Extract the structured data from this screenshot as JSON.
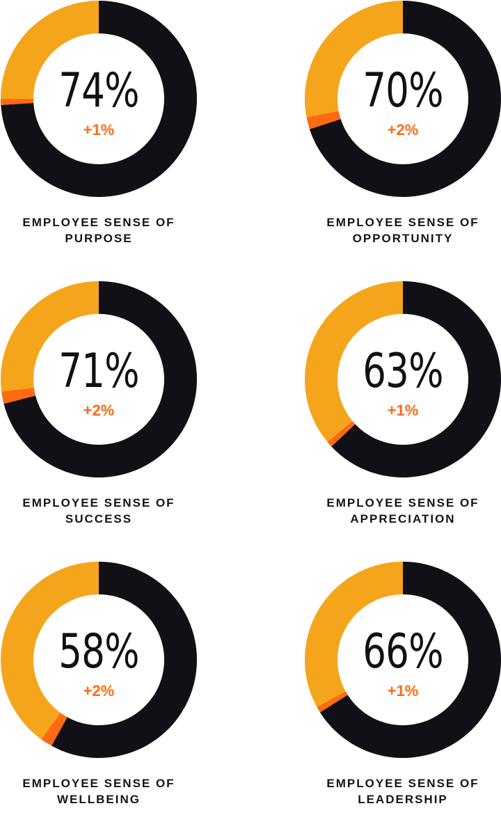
{
  "colors": {
    "dark": "#111016",
    "gold": "#f5a51c",
    "change": "#ff6a13",
    "background": "#ffffff"
  },
  "chart_data": [
    {
      "type": "pie",
      "value_label": "74%",
      "change_label": "+1%",
      "label_lines": [
        "EMPLOYEE SENSE OF",
        "PURPOSE"
      ],
      "value": 74,
      "change": 1,
      "slices": [
        {
          "name": "score",
          "value": 74,
          "color": "#111016"
        },
        {
          "name": "change",
          "value": 1,
          "color": "#ff6a13"
        },
        {
          "name": "remainder",
          "value": 25,
          "color": "#f5a51c"
        }
      ]
    },
    {
      "type": "pie",
      "value_label": "70%",
      "change_label": "+2%",
      "label_lines": [
        "EMPLOYEE SENSE OF",
        "OPPORTUNITY"
      ],
      "value": 70,
      "change": 2,
      "slices": [
        {
          "name": "score",
          "value": 70,
          "color": "#111016"
        },
        {
          "name": "change",
          "value": 2,
          "color": "#ff6a13"
        },
        {
          "name": "remainder",
          "value": 28,
          "color": "#f5a51c"
        }
      ]
    },
    {
      "type": "pie",
      "value_label": "71%",
      "change_label": "+2%",
      "label_lines": [
        "EMPLOYEE SENSE OF",
        "SUCCESS"
      ],
      "value": 71,
      "change": 2,
      "slices": [
        {
          "name": "score",
          "value": 71,
          "color": "#111016"
        },
        {
          "name": "change",
          "value": 2,
          "color": "#ff6a13"
        },
        {
          "name": "remainder",
          "value": 27,
          "color": "#f5a51c"
        }
      ]
    },
    {
      "type": "pie",
      "value_label": "63%",
      "change_label": "+1%",
      "label_lines": [
        "EMPLOYEE SENSE OF",
        "APPRECIATION"
      ],
      "value": 63,
      "change": 1,
      "slices": [
        {
          "name": "score",
          "value": 63,
          "color": "#111016"
        },
        {
          "name": "change",
          "value": 1,
          "color": "#ff6a13"
        },
        {
          "name": "remainder",
          "value": 36,
          "color": "#f5a51c"
        }
      ]
    },
    {
      "type": "pie",
      "value_label": "58%",
      "change_label": "+2%",
      "label_lines": [
        "EMPLOYEE SENSE OF",
        "WELLBEING"
      ],
      "value": 58,
      "change": 2,
      "slices": [
        {
          "name": "score",
          "value": 58,
          "color": "#111016"
        },
        {
          "name": "change",
          "value": 2,
          "color": "#ff6a13"
        },
        {
          "name": "remainder",
          "value": 40,
          "color": "#f5a51c"
        }
      ]
    },
    {
      "type": "pie",
      "value_label": "66%",
      "change_label": "+1%",
      "label_lines": [
        "EMPLOYEE SENSE OF",
        "LEADERSHIP"
      ],
      "value": 66,
      "change": 1,
      "slices": [
        {
          "name": "score",
          "value": 66,
          "color": "#111016"
        },
        {
          "name": "change",
          "value": 1,
          "color": "#ff6a13"
        },
        {
          "name": "remainder",
          "value": 33,
          "color": "#f5a51c"
        }
      ]
    }
  ]
}
